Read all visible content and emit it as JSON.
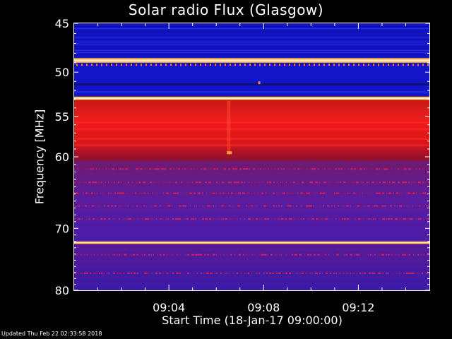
{
  "title": "Solar radio Flux (Glasgow)",
  "footer": {
    "updated": "Updated Thu Feb 22 02:33:58 2018"
  },
  "chart_data": {
    "type": "heatmap",
    "title": "Solar radio Flux (Glasgow)",
    "xlabel": "Start Time (18-Jan-17 09:00:00)",
    "ylabel": "Frequency [MHz]",
    "xlim": [
      "09:00",
      "09:15"
    ],
    "ylim": [
      45,
      80
    ],
    "y_scale": "log",
    "y_reversed": true,
    "x_ticks": [
      {
        "label": "09:04",
        "minutes": 4
      },
      {
        "label": "09:08",
        "minutes": 8
      },
      {
        "label": "09:12",
        "minutes": 12
      }
    ],
    "y_ticks": [
      45,
      50,
      55,
      60,
      70,
      80
    ],
    "colormap": {
      "low": "#1010c8",
      "mid_low": "#3a1aa0",
      "mid": "#6a1a9a",
      "high": "#e01818",
      "peak": "#ffe8a0"
    },
    "bands": [
      {
        "from": 45,
        "to": 48.5,
        "level": "low"
      },
      {
        "from": 48.5,
        "to": 49.0,
        "level": "peak"
      },
      {
        "from": 49.0,
        "to": 52.7,
        "level": "low"
      },
      {
        "from": 52.7,
        "to": 53.1,
        "level": "peak"
      },
      {
        "from": 53.1,
        "to": 60.5,
        "level": "high"
      },
      {
        "from": 60.5,
        "to": 72.0,
        "level": "mid"
      },
      {
        "from": 72.0,
        "to": 72.4,
        "level": "peak"
      },
      {
        "from": 72.4,
        "to": 80,
        "level": "mid_low"
      }
    ]
  }
}
